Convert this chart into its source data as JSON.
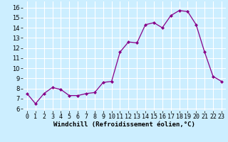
{
  "x": [
    0,
    1,
    2,
    3,
    4,
    5,
    6,
    7,
    8,
    9,
    10,
    11,
    12,
    13,
    14,
    15,
    16,
    17,
    18,
    19,
    20,
    21,
    22,
    23
  ],
  "y": [
    7.5,
    6.5,
    7.5,
    8.1,
    7.9,
    7.3,
    7.3,
    7.5,
    7.6,
    8.6,
    8.7,
    11.6,
    12.6,
    12.5,
    14.3,
    14.5,
    14.0,
    15.2,
    15.7,
    15.6,
    14.3,
    11.6,
    9.2,
    8.7
  ],
  "line_color": "#880088",
  "marker": "D",
  "marker_size": 2.0,
  "bg_color": "#cceeff",
  "grid_color": "#ffffff",
  "xlabel": "Windchill (Refroidissement éolien,°C)",
  "xlabel_fontsize": 6.5,
  "ylabel_ticks": [
    6,
    7,
    8,
    9,
    10,
    11,
    12,
    13,
    14,
    15,
    16
  ],
  "xlim": [
    -0.5,
    23.5
  ],
  "ylim": [
    5.8,
    16.6
  ],
  "tick_fontsize": 6.0,
  "lw": 0.9
}
